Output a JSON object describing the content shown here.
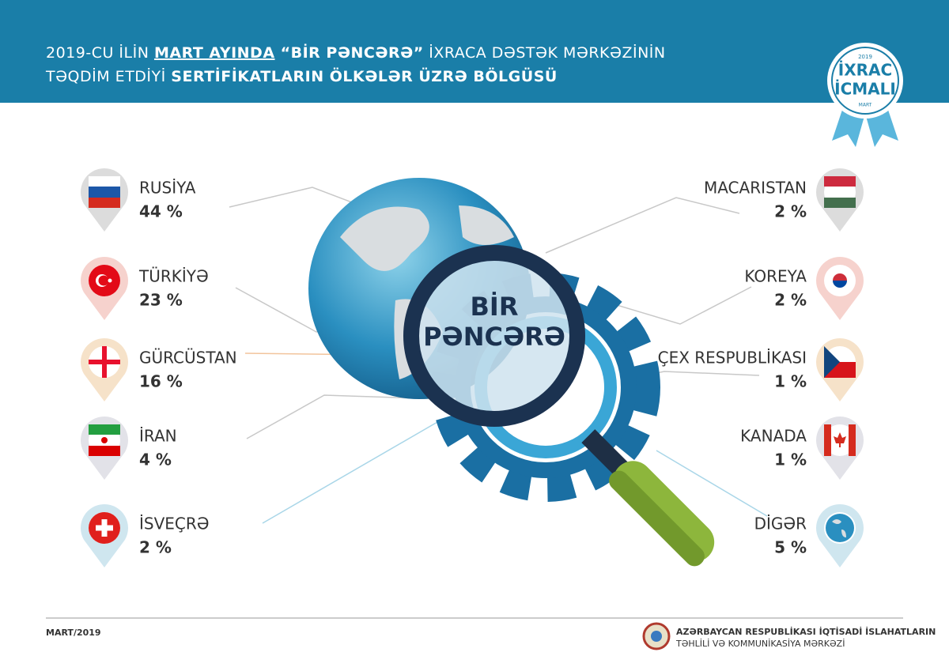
{
  "header": {
    "line1": [
      "2019-CU İLİN ",
      "MART AYINDA",
      " “BİR PƏNCƏRƏ”",
      " İXRACA DƏSTƏK MƏRKƏZİNİN"
    ],
    "line2": [
      "TƏQDİM ETDİYİ ",
      "SERTİFİKATLARIN ÖLKƏLƏR ÜZRƏ BÖLGÜSÜ"
    ]
  },
  "badge": {
    "year": "2019",
    "line1": "İXRAC",
    "line2": "İCMALI",
    "month": "MART"
  },
  "center": {
    "line1": "BİR",
    "line2": "PƏNCƏRƏ"
  },
  "left": [
    {
      "name": "RUSİYA",
      "value": "44 %"
    },
    {
      "name": "TÜRKİYƏ",
      "value": "23 %"
    },
    {
      "name": "GÜRCÜSTAN",
      "value": "16 %"
    },
    {
      "name": "İRAN",
      "value": "4 %"
    },
    {
      "name": "İSVEÇRƏ",
      "value": "2 %"
    }
  ],
  "right": [
    {
      "name": "MACARISTAN",
      "value": "2 %"
    },
    {
      "name": "KOREYA",
      "value": "2 %"
    },
    {
      "name": "ÇEX RESPUBLİKASI",
      "value": "1 %"
    },
    {
      "name": "KANADA",
      "value": "1 %"
    },
    {
      "name": "DİGƏR",
      "value": "5 %"
    }
  ],
  "footer": {
    "date": "MART/2019",
    "org_line1": "AZƏRBAYCAN RESPUBLİKASI İQTİSADİ İSLAHATLARIN",
    "org_line2": "TƏHLİLİ VƏ KOMMUNİKASİYA MƏRKƏZİ"
  }
}
